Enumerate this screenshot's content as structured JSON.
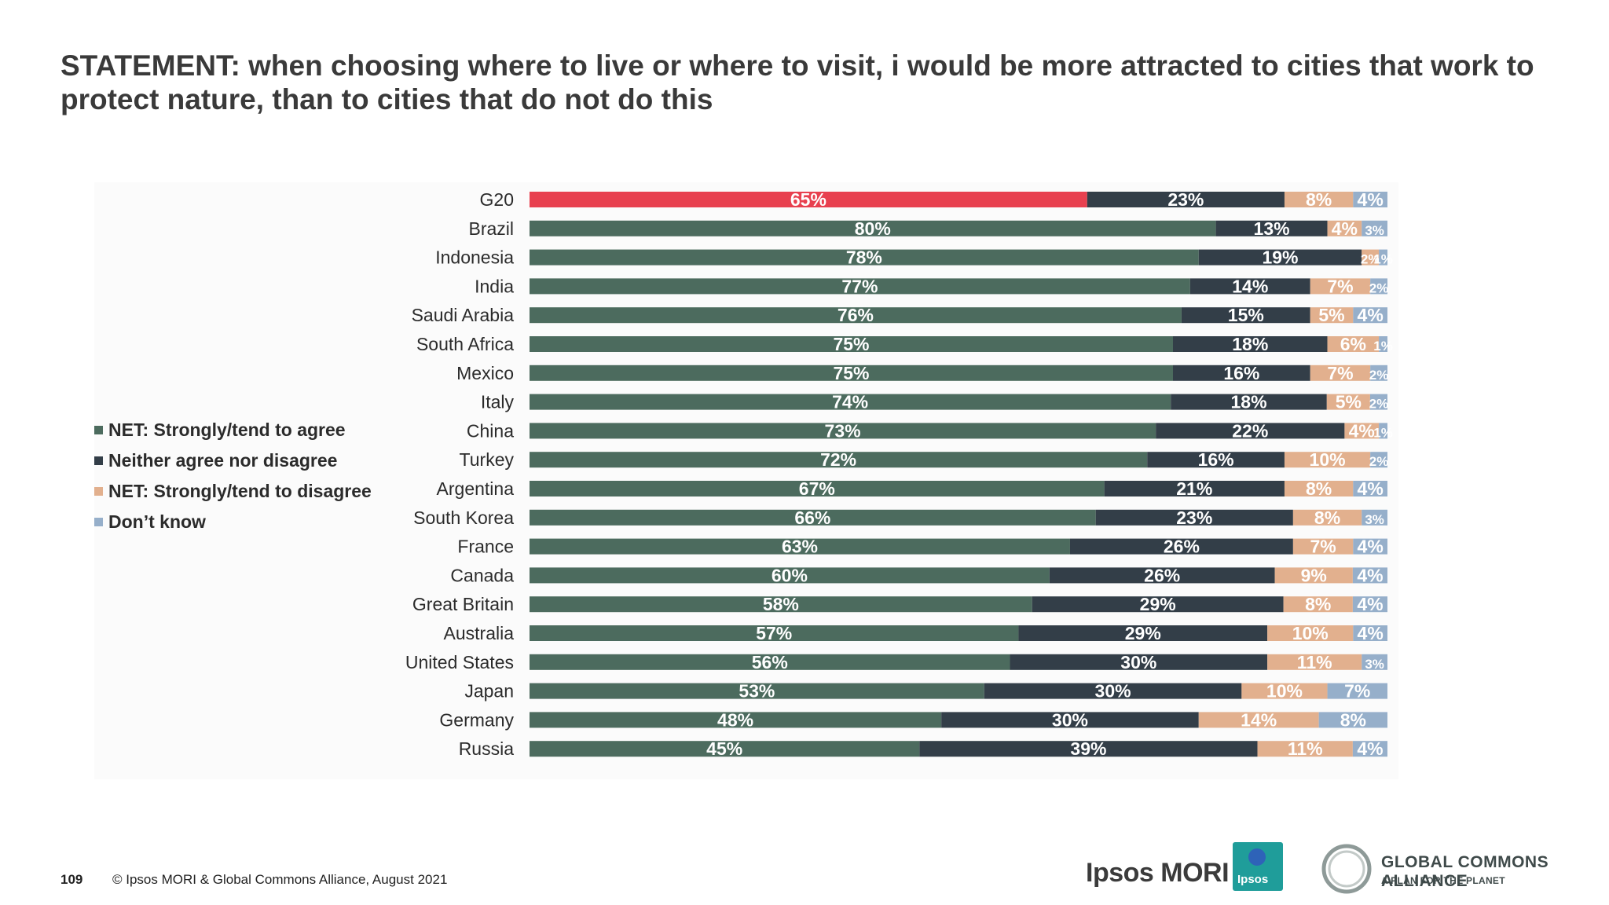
{
  "title": "STATEMENT: when choosing where to live or where to visit, i would be more attracted to cities that work to protect nature, than to cities that do not do this",
  "footer": {
    "page_number": "109",
    "copyright": "© Ipsos MORI & Global Commons Alliance, August 2021"
  },
  "logos": {
    "ipsos_mori": "Ipsos MORI",
    "ipsos_badge": "Ipsos",
    "gca_name": "GLOBAL COMMONS ALLIANCE",
    "gca_tagline": "A PLAN FOR THE PLANET"
  },
  "colors": {
    "agree": "#4c6b5e",
    "highlight": "#e8404f",
    "neither": "#333e48",
    "disagree": "#e2b08e",
    "dont_know": "#96afca"
  },
  "chart_data": {
    "type": "bar",
    "orientation": "horizontal",
    "stacked": true,
    "percent_stacked": true,
    "legend_position": "left",
    "highlighted_category": "G20",
    "categories": [
      "G20",
      "Brazil",
      "Indonesia",
      "India",
      "Saudi Arabia",
      "South Africa",
      "Mexico",
      "Italy",
      "China",
      "Turkey",
      "Argentina",
      "South Korea",
      "France",
      "Canada",
      "Great Britain",
      "Australia",
      "United States",
      "Japan",
      "Germany",
      "Russia"
    ],
    "series": [
      {
        "name": "NET: Strongly/tend to agree",
        "values": [
          65,
          80,
          78,
          77,
          76,
          75,
          75,
          74,
          73,
          72,
          67,
          66,
          63,
          60,
          58,
          57,
          56,
          53,
          48,
          45
        ]
      },
      {
        "name": "Neither agree nor disagree",
        "values": [
          23,
          13,
          19,
          14,
          15,
          18,
          16,
          18,
          22,
          16,
          21,
          23,
          26,
          26,
          29,
          29,
          30,
          30,
          30,
          39
        ]
      },
      {
        "name": "NET: Strongly/tend to disagree",
        "values": [
          8,
          4,
          2,
          7,
          5,
          6,
          7,
          5,
          4,
          10,
          8,
          8,
          7,
          9,
          8,
          10,
          11,
          10,
          14,
          11
        ]
      },
      {
        "name": "Don’t know",
        "values": [
          4,
          3,
          1,
          2,
          4,
          1,
          2,
          2,
          1,
          2,
          4,
          3,
          4,
          4,
          4,
          4,
          3,
          7,
          8,
          4
        ]
      }
    ]
  }
}
